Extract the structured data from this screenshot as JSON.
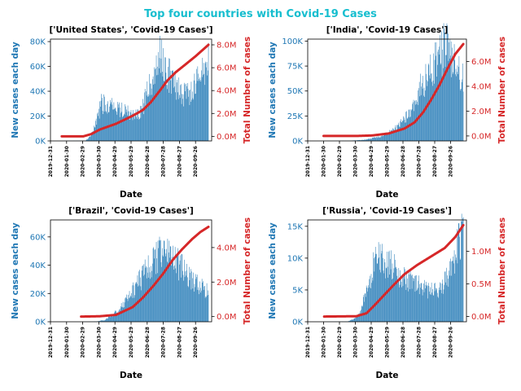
{
  "figure_title": "Top four countries with Covid-19 Cases",
  "colors": {
    "title": "#17becf",
    "bars": "#1f77b4",
    "line": "#d62728",
    "left_axis": "#1f77b4",
    "right_axis": "#d62728"
  },
  "chart_data": [
    {
      "type": "bar+line",
      "title": "['United States', 'Covid-19 Cases']",
      "xlabel": "Date",
      "ylabel_left": "New cases each day",
      "ylabel_right": "Total Number of cases",
      "x_ticks": [
        "2019-12-31",
        "2020-01-30",
        "2020-02-29",
        "2020-03-30",
        "2020-04-29",
        "2020-05-29",
        "2020-06-28",
        "2020-07-28",
        "2020-08-27",
        "2020-09-26"
      ],
      "x_range": [
        "2019-12-31",
        "2020-10-26"
      ],
      "left_ticks": [
        {
          "v": 0,
          "t": "0K"
        },
        {
          "v": 20000,
          "t": "20K"
        },
        {
          "v": 40000,
          "t": "40K"
        },
        {
          "v": 60000,
          "t": "60K"
        },
        {
          "v": 80000,
          "t": "80K"
        }
      ],
      "right_ticks": [
        {
          "v": 0,
          "t": "0.0M"
        },
        {
          "v": 2000000,
          "t": "2.0M"
        },
        {
          "v": 4000000,
          "t": "4.0M"
        },
        {
          "v": 6000000,
          "t": "6.0M"
        },
        {
          "v": 8000000,
          "t": "8.0M"
        }
      ],
      "ylim_left": [
        0,
        82000
      ],
      "ylim_right": [
        -400000,
        8500000
      ],
      "bar_profile": [
        [
          "2020-01-21",
          0
        ],
        [
          "2020-03-05",
          300
        ],
        [
          "2020-03-15",
          3500
        ],
        [
          "2020-03-25",
          14000
        ],
        [
          "2020-04-04",
          30000
        ],
        [
          "2020-04-24",
          29000
        ],
        [
          "2020-05-14",
          24000
        ],
        [
          "2020-06-03",
          21000
        ],
        [
          "2020-06-18",
          25000
        ],
        [
          "2020-07-05",
          48000
        ],
        [
          "2020-07-22",
          67000
        ],
        [
          "2020-08-06",
          55000
        ],
        [
          "2020-08-21",
          43000
        ],
        [
          "2020-09-06",
          37000
        ],
        [
          "2020-09-16",
          38000
        ],
        [
          "2020-09-26",
          45000
        ],
        [
          "2020-10-08",
          55000
        ],
        [
          "2020-10-20",
          62000
        ]
      ],
      "total_profile": [
        [
          "2020-01-21",
          0
        ],
        [
          "2020-03-01",
          0
        ],
        [
          "2020-03-16",
          200000
        ],
        [
          "2020-04-01",
          600000
        ],
        [
          "2020-05-01",
          1100000
        ],
        [
          "2020-06-01",
          1800000
        ],
        [
          "2020-06-20",
          2300000
        ],
        [
          "2020-07-05",
          3000000
        ],
        [
          "2020-07-20",
          3900000
        ],
        [
          "2020-08-05",
          4900000
        ],
        [
          "2020-08-20",
          5600000
        ],
        [
          "2020-09-05",
          6200000
        ],
        [
          "2020-09-26",
          7000000
        ],
        [
          "2020-10-20",
          8000000
        ]
      ],
      "bar_last": "2020-10-20"
    },
    {
      "type": "bar+line",
      "title": "['India', 'Covid-19 Cases']",
      "xlabel": "Date",
      "ylabel_left": "New cases each day",
      "ylabel_right": "Total Number of cases",
      "x_ticks": [
        "2019-12-31",
        "2020-01-30",
        "2020-02-29",
        "2020-03-30",
        "2020-04-29",
        "2020-05-29",
        "2020-06-28",
        "2020-07-28",
        "2020-08-27",
        "2020-09-26"
      ],
      "x_range": [
        "2019-12-31",
        "2020-10-26"
      ],
      "left_ticks": [
        {
          "v": 0,
          "t": "0K"
        },
        {
          "v": 25000,
          "t": "25K"
        },
        {
          "v": 50000,
          "t": "50K"
        },
        {
          "v": 75000,
          "t": "75K"
        },
        {
          "v": 100000,
          "t": "100K"
        }
      ],
      "right_ticks": [
        {
          "v": 0,
          "t": "0.0M"
        },
        {
          "v": 2000000,
          "t": "2.0M"
        },
        {
          "v": 4000000,
          "t": "4.0M"
        },
        {
          "v": 6000000,
          "t": "6.0M"
        }
      ],
      "ylim_left": [
        0,
        102000
      ],
      "ylim_right": [
        -400000,
        7800000
      ],
      "bar_profile": [
        [
          "2020-01-30",
          0
        ],
        [
          "2020-03-20",
          200
        ],
        [
          "2020-04-15",
          1000
        ],
        [
          "2020-05-10",
          3500
        ],
        [
          "2020-06-01",
          8000
        ],
        [
          "2020-06-20",
          15000
        ],
        [
          "2020-07-10",
          27000
        ],
        [
          "2020-07-25",
          48000
        ],
        [
          "2020-08-10",
          62000
        ],
        [
          "2020-08-25",
          75000
        ],
        [
          "2020-09-16",
          95000
        ],
        [
          "2020-09-26",
          87000
        ],
        [
          "2020-10-08",
          72000
        ],
        [
          "2020-10-20",
          60000
        ]
      ],
      "total_profile": [
        [
          "2020-01-30",
          0
        ],
        [
          "2020-04-01",
          0
        ],
        [
          "2020-05-01",
          40000
        ],
        [
          "2020-06-01",
          200000
        ],
        [
          "2020-07-01",
          600000
        ],
        [
          "2020-07-20",
          1100000
        ],
        [
          "2020-08-05",
          1900000
        ],
        [
          "2020-08-20",
          2900000
        ],
        [
          "2020-09-05",
          4100000
        ],
        [
          "2020-09-20",
          5400000
        ],
        [
          "2020-10-05",
          6600000
        ],
        [
          "2020-10-20",
          7400000
        ]
      ],
      "bar_last": "2020-10-20"
    },
    {
      "type": "bar+line",
      "title": "['Brazil', 'Covid-19 Cases']",
      "xlabel": "Date",
      "ylabel_left": "New cases each day",
      "ylabel_right": "Total Number of cases",
      "x_ticks": [
        "2019-12-31",
        "2020-01-30",
        "2020-02-29",
        "2020-03-30",
        "2020-04-29",
        "2020-05-29",
        "2020-06-28",
        "2020-07-28",
        "2020-08-27",
        "2020-09-26"
      ],
      "x_range": [
        "2019-12-31",
        "2020-10-26"
      ],
      "left_ticks": [
        {
          "v": 0,
          "t": "0K"
        },
        {
          "v": 20000,
          "t": "20K"
        },
        {
          "v": 40000,
          "t": "40K"
        },
        {
          "v": 60000,
          "t": "60K"
        }
      ],
      "right_ticks": [
        {
          "v": 0,
          "t": "0.0M"
        },
        {
          "v": 2000000,
          "t": "2.0M"
        },
        {
          "v": 4000000,
          "t": "4.0M"
        }
      ],
      "ylim_left": [
        0,
        72000
      ],
      "ylim_right": [
        -300000,
        5600000
      ],
      "bar_profile": [
        [
          "2020-02-26",
          0
        ],
        [
          "2020-03-25",
          200
        ],
        [
          "2020-04-10",
          1200
        ],
        [
          "2020-04-25",
          5000
        ],
        [
          "2020-05-10",
          10000
        ],
        [
          "2020-05-25",
          17000
        ],
        [
          "2020-06-10",
          27000
        ],
        [
          "2020-06-25",
          35000
        ],
        [
          "2020-07-10",
          43000
        ],
        [
          "2020-07-28",
          52000
        ],
        [
          "2020-08-15",
          44000
        ],
        [
          "2020-09-01",
          38000
        ],
        [
          "2020-09-16",
          30000
        ],
        [
          "2020-10-01",
          26000
        ],
        [
          "2020-10-20",
          22000
        ]
      ],
      "total_profile": [
        [
          "2020-02-26",
          0
        ],
        [
          "2020-04-01",
          20000
        ],
        [
          "2020-05-01",
          100000
        ],
        [
          "2020-06-01",
          550000
        ],
        [
          "2020-06-20",
          1100000
        ],
        [
          "2020-07-10",
          1800000
        ],
        [
          "2020-07-28",
          2500000
        ],
        [
          "2020-08-15",
          3300000
        ],
        [
          "2020-09-01",
          3900000
        ],
        [
          "2020-09-20",
          4500000
        ],
        [
          "2020-10-05",
          4900000
        ],
        [
          "2020-10-20",
          5200000
        ]
      ],
      "bar_last": "2020-10-20"
    },
    {
      "type": "bar+line",
      "title": "['Russia', 'Covid-19 Cases']",
      "xlabel": "Date",
      "ylabel_left": "New cases each day",
      "ylabel_right": "Total Number of cases",
      "x_ticks": [
        "2019-12-31",
        "2020-01-30",
        "2020-02-29",
        "2020-03-30",
        "2020-04-29",
        "2020-05-29",
        "2020-06-28",
        "2020-07-28",
        "2020-08-27",
        "2020-09-26"
      ],
      "x_range": [
        "2019-12-31",
        "2020-10-26"
      ],
      "left_ticks": [
        {
          "v": 0,
          "t": "0K"
        },
        {
          "v": 5000,
          "t": "5K"
        },
        {
          "v": 10000,
          "t": "10K"
        },
        {
          "v": 15000,
          "t": "15K"
        }
      ],
      "right_ticks": [
        {
          "v": 0,
          "t": "0.0M"
        },
        {
          "v": 500000,
          "t": "0.5M"
        },
        {
          "v": 1000000,
          "t": "1.0M"
        }
      ],
      "ylim_left": [
        0,
        16000
      ],
      "ylim_right": [
        -80000,
        1480000
      ],
      "bar_profile": [
        [
          "2020-01-31",
          0
        ],
        [
          "2020-03-15",
          50
        ],
        [
          "2020-03-30",
          500
        ],
        [
          "2020-04-10",
          1800
        ],
        [
          "2020-04-20",
          5000
        ],
        [
          "2020-05-01",
          8000
        ],
        [
          "2020-05-11",
          11200
        ],
        [
          "2020-05-25",
          9000
        ],
        [
          "2020-06-10",
          8800
        ],
        [
          "2020-06-25",
          7000
        ],
        [
          "2020-07-15",
          6300
        ],
        [
          "2020-08-05",
          5300
        ],
        [
          "2020-08-25",
          4800
        ],
        [
          "2020-09-10",
          5500
        ],
        [
          "2020-09-26",
          8000
        ],
        [
          "2020-10-08",
          11500
        ],
        [
          "2020-10-20",
          14500
        ]
      ],
      "total_profile": [
        [
          "2020-01-31",
          0
        ],
        [
          "2020-04-01",
          5000
        ],
        [
          "2020-04-20",
          50000
        ],
        [
          "2020-05-05",
          170000
        ],
        [
          "2020-05-20",
          300000
        ],
        [
          "2020-06-10",
          480000
        ],
        [
          "2020-07-01",
          650000
        ],
        [
          "2020-07-25",
          790000
        ],
        [
          "2020-08-20",
          920000
        ],
        [
          "2020-09-15",
          1050000
        ],
        [
          "2020-10-05",
          1220000
        ],
        [
          "2020-10-20",
          1400000
        ]
      ],
      "bar_last": "2020-10-20"
    }
  ]
}
